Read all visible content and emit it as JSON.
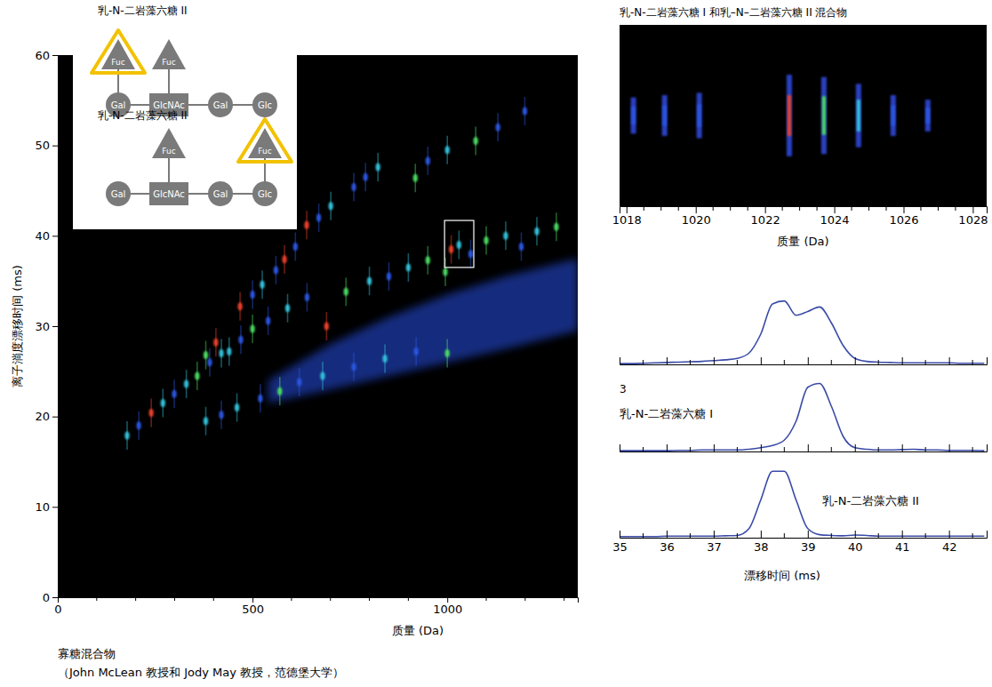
{
  "chart_data": [
    {
      "type": "scatter",
      "title": "寡糖混合物",
      "subtitle": "（John McLean 教授和 Jody May 教授，范德堡大学）",
      "x_label": "质量 (Da)",
      "y_label": "离子淌度漂移时间 (ms)",
      "xlim": [
        0,
        1335
      ],
      "ylim": [
        0,
        60
      ],
      "xticks": [
        0,
        500,
        1000
      ],
      "x_minor_ticks": [
        100,
        200,
        300,
        400,
        600,
        700,
        800,
        900,
        1100,
        1200,
        1300
      ],
      "yticks": [
        0,
        10,
        20,
        30,
        40,
        50,
        60
      ],
      "series": [
        {
          "type": "area",
          "color": "#1b3aa8",
          "x": [
            540,
            700,
            850,
            1000,
            1150,
            1335
          ],
          "values": [
            24,
            28,
            31,
            33.5,
            35.5,
            37.5
          ],
          "low": [
            21.5,
            23,
            24.5,
            26,
            27.5,
            29.5
          ]
        },
        {
          "type": "scatter",
          "marker": "streak",
          "x": [
            178,
            208,
            240,
            270,
            299,
            330,
            358,
            390,
            406,
            420,
            468,
            500,
            525,
            560,
            582,
            610,
            639,
            670,
            701,
            760,
            790,
            822,
            918,
            950,
            1000,
            1073,
            1130,
            1199,
            380,
            440,
            470,
            500,
            540,
            590,
            640,
            690,
            740,
            800,
            850,
            900,
            950,
            995,
            1010,
            1030,
            1060,
            1100,
            1150,
            1190,
            1230,
            1280,
            380,
            420,
            460,
            520,
            570,
            620,
            680,
            760,
            840,
            920,
            1000
          ],
          "values": [
            17.9,
            19.0,
            20.4,
            21.5,
            22.5,
            23.6,
            24.5,
            26.0,
            28.2,
            27.0,
            32.2,
            33.5,
            34.6,
            36.2,
            37.4,
            38.8,
            41.2,
            42.0,
            43.3,
            45.4,
            46.5,
            47.6,
            46.4,
            48.3,
            49.5,
            50.5,
            52.0,
            53.8,
            26.8,
            27.2,
            28.5,
            29.7,
            30.6,
            32.0,
            33.2,
            30.0,
            33.8,
            35.0,
            35.5,
            36.5,
            37.3,
            36.0,
            38.5,
            39.0,
            38.0,
            39.5,
            40.0,
            38.8,
            40.5,
            41.0,
            19.5,
            20.2,
            21.0,
            22.0,
            22.8,
            23.8,
            24.5,
            25.5,
            26.4,
            27.2,
            27.0
          ],
          "colors": [
            "#30c0d8",
            "#2b55e0",
            "#e8402c",
            "#30c0d8",
            "#2b55e0",
            "#30c0d8",
            "#48d860",
            "#2b55e0",
            "#e8402c",
            "#30c0d8",
            "#e8402c",
            "#2b55e0",
            "#30c0d8",
            "#2b55e0",
            "#e8402c",
            "#2b55e0",
            "#e8402c",
            "#2b55e0",
            "#30c0d8",
            "#2b55e0",
            "#2b55e0",
            "#30c0d8",
            "#48d860",
            "#2b55e0",
            "#30c0d8",
            "#48d860",
            "#2b55e0",
            "#2b55e0",
            "#48d860",
            "#30c0d8",
            "#2b55e0",
            "#48d860",
            "#2b55e0",
            "#30c0d8",
            "#2b55e0",
            "#e8402c",
            "#48d860",
            "#30c0d8",
            "#2b55e0",
            "#30c0d8",
            "#48d860",
            "#48d860",
            "#e8402c",
            "#30c0d8",
            "#2b55e0",
            "#48d860",
            "#30c0d8",
            "#2b55e0",
            "#30c0d8",
            "#48d860",
            "#30c0d8",
            "#2b55e0",
            "#30c0d8",
            "#2b55e0",
            "#48d860",
            "#2b55e0",
            "#30c0d8",
            "#2b55e0",
            "#30c0d8",
            "#2b55e0",
            "#48d860"
          ]
        }
      ],
      "zoom_box": {
        "x": [
          993,
          1068
        ],
        "y": [
          36.5,
          41.7
        ]
      }
    },
    {
      "type": "strip",
      "title": "乳-N-二岩藻六糖 I 和乳–N–二岩藻六糖 II 混合物",
      "x_label": "质量 (Da)",
      "xlim": [
        1017.8,
        1028.4
      ],
      "ylim": [
        -100,
        100
      ],
      "xticks": [
        1018,
        1020,
        1022,
        1024,
        1026,
        1028
      ],
      "x_minor_ticks": [
        1018.5,
        1019,
        1019.5,
        1020.5,
        1021,
        1021.5,
        1022.5,
        1023,
        1023.5,
        1024.5,
        1025,
        1025.5,
        1026.5,
        1027,
        1027.5
      ],
      "tick_labels": "x",
      "x": [
        1018.2,
        1019.1,
        1020.1,
        1022.7,
        1023.7,
        1024.7,
        1025.7,
        1026.7
      ],
      "values": [
        40,
        45,
        50,
        90,
        85,
        70,
        45,
        35
      ],
      "colors": [
        "#2b55e0",
        "#2b55e0",
        "#2b55e0",
        "#e8402c",
        "#48d860",
        "#30c0d8",
        "#2b55e0",
        "#2b55e0"
      ]
    },
    {
      "type": "line",
      "x_label": "漂移时间 (ms)",
      "xlim": [
        35,
        42.8
      ],
      "ylim": [
        0,
        100
      ],
      "xticks": [
        35,
        36,
        37,
        38,
        39,
        40,
        41,
        42
      ],
      "x_minor_ticks": [
        35.5,
        36.5,
        37.5,
        38.5,
        39.5,
        40.5,
        41.5,
        42.5
      ],
      "tick_labels": "x",
      "annotations": [
        {
          "text": "3"
        }
      ],
      "x": [
        35,
        35.25,
        35.5,
        35.75,
        36,
        36.25,
        36.5,
        36.75,
        37,
        37.25,
        37.5,
        37.75,
        38,
        38.25,
        38.5,
        38.75,
        39,
        39.25,
        39.5,
        39.75,
        40,
        40.25,
        40.5,
        40.75,
        41,
        41.25,
        41.5,
        41.75,
        42,
        42.25,
        42.5,
        42.75
      ],
      "series": [
        {
          "color": "#3a4ba8",
          "values": [
            1,
            1,
            1.5,
            2,
            2.5,
            3,
            3.5,
            4,
            5,
            6,
            8,
            15,
            40,
            80,
            84,
            65,
            70,
            76,
            55,
            25,
            8,
            4,
            3,
            2.5,
            2,
            2,
            2,
            2,
            2,
            1.5,
            1.5,
            1.5
          ]
        },
        {
          "name": "乳-N-二岩藻六糖 I",
          "color": "#3a4ba8",
          "values": [
            1,
            1,
            1,
            1,
            1,
            1.5,
            1.5,
            2,
            2,
            2,
            2,
            3,
            5,
            8,
            15,
            40,
            85,
            90,
            60,
            20,
            5,
            3,
            2,
            2,
            2.5,
            3,
            2,
            2,
            1.5,
            1.5,
            1.5,
            1
          ]
        },
        {
          "name": "乳-N-二岩藻六糖 II",
          "color": "#3a4ba8",
          "values": [
            1.5,
            1.5,
            1.5,
            1.5,
            2,
            2,
            2,
            2,
            2,
            2.5,
            3,
            12,
            50,
            88,
            88,
            50,
            12,
            4,
            3,
            2.5,
            3.5,
            3,
            2,
            2,
            2,
            2,
            2,
            2,
            2,
            2,
            2,
            2
          ]
        }
      ]
    }
  ],
  "structures": [
    {
      "title": "乳-N-二岩藻六糖 II",
      "backbone": [
        {
          "label": "Gal",
          "shape": "circle"
        },
        {
          "label": "GlcNAc",
          "shape": "square"
        },
        {
          "label": "Gal",
          "shape": "circle"
        },
        {
          "label": "Glc",
          "shape": "circle"
        }
      ],
      "fucoses": [
        {
          "label": "Fuc",
          "on": 0,
          "highlight": true
        },
        {
          "label": "Fuc",
          "on": 1,
          "highlight": false
        }
      ]
    },
    {
      "title": "乳-N-二岩藻六糖 II",
      "backbone": [
        {
          "label": "Gal",
          "shape": "circle"
        },
        {
          "label": "GlcNAc",
          "shape": "square"
        },
        {
          "label": "Gal",
          "shape": "circle"
        },
        {
          "label": "Glc",
          "shape": "circle"
        }
      ],
      "fucoses": [
        {
          "label": "Fuc",
          "on": 1,
          "highlight": false
        },
        {
          "label": "Fuc",
          "on": 3,
          "highlight": true
        }
      ]
    }
  ]
}
